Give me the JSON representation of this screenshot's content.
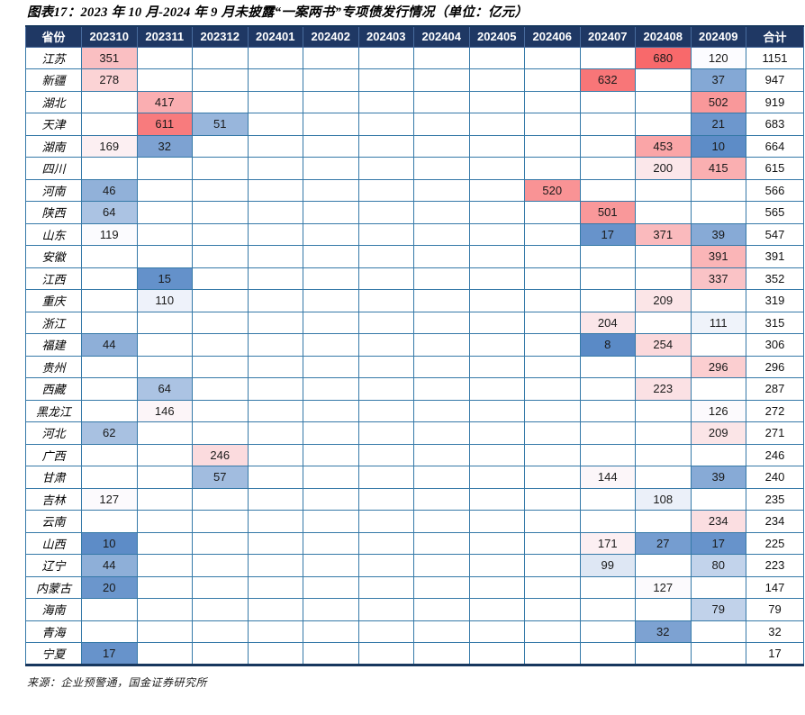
{
  "title": "图表17：2023 年 10 月-2024 年 9 月未披露“一案两书”专项债发行情况（单位：亿元）",
  "source_note": "来源：企业预警通，国金证券研究所",
  "colors": {
    "header_bg": "#1F3864",
    "header_text": "#FFFFFF",
    "grid_border": "#3579A8",
    "outer_border": "#17375E"
  },
  "chart_data": {
    "type": "table",
    "title": "图表17：2023 年 10 月-2024 年 9 月未披露“一案两书”专项债发行情况（单位：亿元）",
    "columns": [
      "省份",
      "202310",
      "202311",
      "202312",
      "202401",
      "202402",
      "202403",
      "202404",
      "202405",
      "202406",
      "202407",
      "202408",
      "202409",
      "合计"
    ],
    "color_scale": {
      "description": "3-color diverging scale: low=blue, mid=white, high=red",
      "min": 8,
      "mid": 120,
      "max": 680,
      "min_color": "#5A8AC6",
      "mid_color": "#FCFCFF",
      "max_color": "#F8696B"
    },
    "rows": [
      {
        "province": "江苏",
        "months": [
          351,
          null,
          null,
          null,
          null,
          null,
          null,
          null,
          null,
          null,
          680,
          120
        ],
        "total": 1151
      },
      {
        "province": "新疆",
        "months": [
          278,
          null,
          null,
          null,
          null,
          null,
          null,
          null,
          null,
          632,
          null,
          37
        ],
        "total": 947
      },
      {
        "province": "湖北",
        "months": [
          null,
          417,
          null,
          null,
          null,
          null,
          null,
          null,
          null,
          null,
          null,
          502
        ],
        "total": 919
      },
      {
        "province": "天津",
        "months": [
          null,
          611,
          51,
          null,
          null,
          null,
          null,
          null,
          null,
          null,
          null,
          21
        ],
        "total": 683
      },
      {
        "province": "湖南",
        "months": [
          169,
          32,
          null,
          null,
          null,
          null,
          null,
          null,
          null,
          null,
          453,
          10
        ],
        "total": 664
      },
      {
        "province": "四川",
        "months": [
          null,
          null,
          null,
          null,
          null,
          null,
          null,
          null,
          null,
          null,
          200,
          415
        ],
        "total": 615
      },
      {
        "province": "河南",
        "months": [
          46,
          null,
          null,
          null,
          null,
          null,
          null,
          null,
          520,
          null,
          null,
          null
        ],
        "total": 566
      },
      {
        "province": "陕西",
        "months": [
          64,
          null,
          null,
          null,
          null,
          null,
          null,
          null,
          null,
          501,
          null,
          null
        ],
        "total": 565
      },
      {
        "province": "山东",
        "months": [
          119,
          null,
          null,
          null,
          null,
          null,
          null,
          null,
          null,
          17,
          371,
          39
        ],
        "total": 547
      },
      {
        "province": "安徽",
        "months": [
          null,
          null,
          null,
          null,
          null,
          null,
          null,
          null,
          null,
          null,
          null,
          391
        ],
        "total": 391
      },
      {
        "province": "江西",
        "months": [
          null,
          15,
          null,
          null,
          null,
          null,
          null,
          null,
          null,
          null,
          null,
          337
        ],
        "total": 352
      },
      {
        "province": "重庆",
        "months": [
          null,
          110,
          null,
          null,
          null,
          null,
          null,
          null,
          null,
          null,
          209,
          null
        ],
        "total": 319
      },
      {
        "province": "浙江",
        "months": [
          null,
          null,
          null,
          null,
          null,
          null,
          null,
          null,
          null,
          204,
          null,
          111
        ],
        "total": 315
      },
      {
        "province": "福建",
        "months": [
          44,
          null,
          null,
          null,
          null,
          null,
          null,
          null,
          null,
          8,
          254,
          null
        ],
        "total": 306
      },
      {
        "province": "贵州",
        "months": [
          null,
          null,
          null,
          null,
          null,
          null,
          null,
          null,
          null,
          null,
          null,
          296
        ],
        "total": 296
      },
      {
        "province": "西藏",
        "months": [
          null,
          64,
          null,
          null,
          null,
          null,
          null,
          null,
          null,
          null,
          223,
          null
        ],
        "total": 287
      },
      {
        "province": "黑龙江",
        "months": [
          null,
          146,
          null,
          null,
          null,
          null,
          null,
          null,
          null,
          null,
          null,
          126
        ],
        "total": 272
      },
      {
        "province": "河北",
        "months": [
          62,
          null,
          null,
          null,
          null,
          null,
          null,
          null,
          null,
          null,
          null,
          209
        ],
        "total": 271
      },
      {
        "province": "广西",
        "months": [
          null,
          null,
          246,
          null,
          null,
          null,
          null,
          null,
          null,
          null,
          null,
          null
        ],
        "total": 246
      },
      {
        "province": "甘肃",
        "months": [
          null,
          null,
          57,
          null,
          null,
          null,
          null,
          null,
          null,
          144,
          null,
          39
        ],
        "total": 240
      },
      {
        "province": "吉林",
        "months": [
          127,
          null,
          null,
          null,
          null,
          null,
          null,
          null,
          null,
          null,
          108,
          null
        ],
        "total": 235
      },
      {
        "province": "云南",
        "months": [
          null,
          null,
          null,
          null,
          null,
          null,
          null,
          null,
          null,
          null,
          null,
          234
        ],
        "total": 234
      },
      {
        "province": "山西",
        "months": [
          10,
          null,
          null,
          null,
          null,
          null,
          null,
          null,
          null,
          171,
          27,
          17
        ],
        "total": 225
      },
      {
        "province": "辽宁",
        "months": [
          44,
          null,
          null,
          null,
          null,
          null,
          null,
          null,
          null,
          99,
          null,
          80
        ],
        "total": 223
      },
      {
        "province": "内蒙古",
        "months": [
          20,
          null,
          null,
          null,
          null,
          null,
          null,
          null,
          null,
          null,
          127,
          null
        ],
        "total": 147
      },
      {
        "province": "海南",
        "months": [
          null,
          null,
          null,
          null,
          null,
          null,
          null,
          null,
          null,
          null,
          null,
          79
        ],
        "total": 79
      },
      {
        "province": "青海",
        "months": [
          null,
          null,
          null,
          null,
          null,
          null,
          null,
          null,
          null,
          null,
          32,
          null
        ],
        "total": 32
      },
      {
        "province": "宁夏",
        "months": [
          17,
          null,
          null,
          null,
          null,
          null,
          null,
          null,
          null,
          null,
          null,
          null
        ],
        "total": 17
      }
    ]
  }
}
